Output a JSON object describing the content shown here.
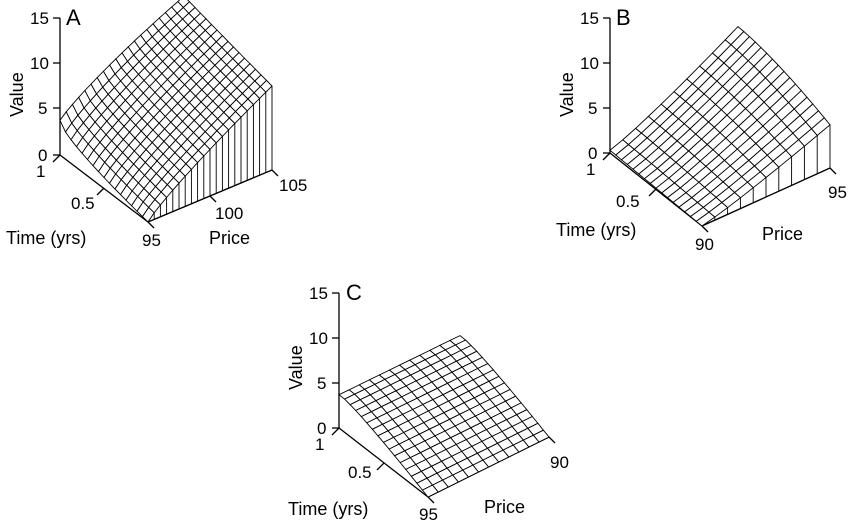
{
  "chart_data": [
    {
      "panel": "A",
      "type": "surface",
      "zlabel": "Value",
      "xlabel": "Time (yrs)",
      "ylabel": "Price",
      "z_ticks": [
        "15",
        "10",
        "5",
        "0"
      ],
      "time_ticks": [
        "1",
        "0.5"
      ],
      "price_ticks": [
        "95",
        "100",
        "105"
      ],
      "zlim": [
        0,
        15
      ],
      "time_range": [
        0,
        1
      ],
      "price_range": [
        95,
        105
      ],
      "grid": {
        "time_lines": 17,
        "price_lines": 21
      },
      "corner_values": {
        "time1_price95": 3.8,
        "time1_price105": 11.7,
        "time0_price95": 0.0,
        "time0_price105": 10.0
      }
    },
    {
      "panel": "B",
      "type": "surface",
      "zlabel": "Value",
      "xlabel": "Time (yrs)",
      "ylabel": "Price",
      "z_ticks": [
        "15",
        "10",
        "5",
        "0"
      ],
      "time_ticks": [
        "1",
        "0.5"
      ],
      "price_ticks": [
        "90",
        "95"
      ],
      "zlim": [
        0,
        15
      ],
      "time_range": [
        0,
        1
      ],
      "price_range": [
        90,
        95
      ],
      "grid": {
        "time_lines": 17,
        "price_lines": 11
      },
      "corner_values": {
        "time1_price90": 0.3,
        "time1_price95": 7.6,
        "time0_price90": 0.0,
        "time0_price95": 4.8
      }
    },
    {
      "panel": "C",
      "type": "surface",
      "zlabel": "Value",
      "xlabel": "Time (yrs)",
      "ylabel": "Price",
      "z_ticks": [
        "15",
        "10",
        "5",
        "0"
      ],
      "time_ticks": [
        "1",
        "0.5"
      ],
      "price_ticks": [
        "95",
        "90"
      ],
      "zlim": [
        0,
        15
      ],
      "time_range": [
        0,
        1
      ],
      "price_range": [
        90,
        95
      ],
      "grid": {
        "time_lines": 17,
        "price_lines": 13
      },
      "corner_values": {
        "time1_price95": 3.7,
        "time1_price90": 3.6,
        "time0_price95": 0.0,
        "time0_price90": 0.0
      }
    }
  ]
}
